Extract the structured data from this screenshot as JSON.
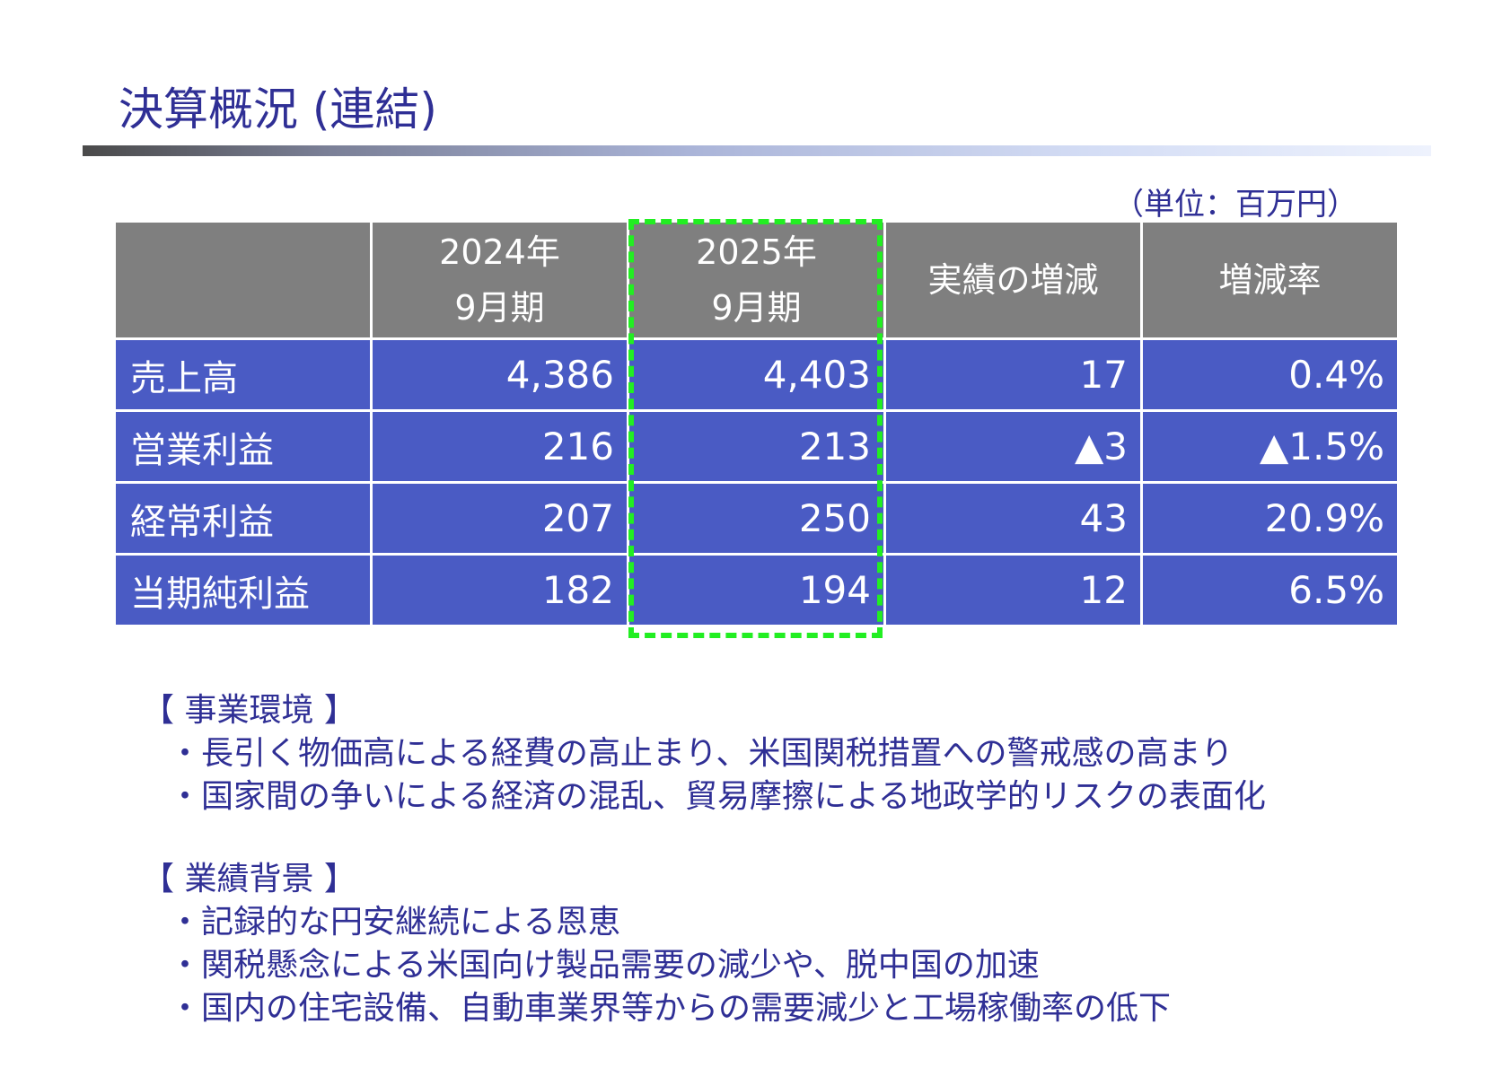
{
  "title": "決算概況 (連結)",
  "unit_note": "（単位：百万円）",
  "table": {
    "headers": [
      "",
      "2024年\n9月期",
      "2025年\n9月期",
      "実績の増減",
      "増減率"
    ],
    "rows": [
      {
        "label": "売上高",
        "fy2024": "4,386",
        "fy2025": "4,403",
        "change": "17",
        "rate": "0.4%"
      },
      {
        "label": "営業利益",
        "fy2024": "216",
        "fy2025": "213",
        "change": "▲3",
        "rate": "▲1.5%"
      },
      {
        "label": "経常利益",
        "fy2024": "207",
        "fy2025": "250",
        "change": "43",
        "rate": "20.9%"
      },
      {
        "label": "当期純利益",
        "fy2024": "182",
        "fy2025": "194",
        "change": "12",
        "rate": "6.5%"
      }
    ]
  },
  "highlight_color": "#22ee22",
  "business_environment": {
    "heading": "【 事業環境 】",
    "bullets": [
      "・長引く物価高による経費の高止まり、米国関税措置への警戒感の高まり",
      "・国家間の争いによる経済の混乱、貿易摩擦による地政学的リスクの表面化"
    ]
  },
  "performance_background": {
    "heading": "【 業績背景 】",
    "bullets": [
      "・記録的な円安継続による恩恵",
      "・関税懸念による米国向け製品需要の減少や、脱中国の加速",
      "・国内の住宅設備、自動車業界等からの需要減少と工場稼働率の低下"
    ]
  }
}
